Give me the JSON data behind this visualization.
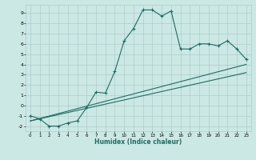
{
  "xlabel": "Humidex (Indice chaleur)",
  "ylabel": "",
  "bg_color": "#cce8e4",
  "line_color": "#1a6e62",
  "grid_color": "#aacccc",
  "xlim": [
    -0.5,
    23.5
  ],
  "ylim": [
    -2.5,
    9.8
  ],
  "xticks": [
    0,
    1,
    2,
    3,
    4,
    5,
    6,
    7,
    8,
    9,
    10,
    11,
    12,
    13,
    14,
    15,
    16,
    17,
    18,
    19,
    20,
    21,
    22,
    23
  ],
  "yticks": [
    -2,
    -1,
    0,
    1,
    2,
    3,
    4,
    5,
    6,
    7,
    8,
    9
  ],
  "curve1_x": [
    0,
    1,
    2,
    3,
    4,
    5,
    6,
    7,
    8,
    9,
    10,
    11,
    12,
    13,
    14,
    15,
    16,
    17,
    18,
    19,
    20,
    21,
    22,
    23
  ],
  "curve1_y": [
    -1.0,
    -1.3,
    -2.0,
    -2.0,
    -1.7,
    -1.5,
    -0.2,
    1.3,
    1.2,
    3.3,
    6.3,
    7.5,
    9.3,
    9.3,
    8.7,
    9.2,
    5.5,
    5.5,
    6.0,
    6.0,
    5.8,
    6.3,
    5.5,
    4.5
  ],
  "curve2_x": [
    0,
    23
  ],
  "curve2_y": [
    -1.5,
    4.0
  ],
  "curve3_x": [
    0,
    23
  ],
  "curve3_y": [
    -1.5,
    3.2
  ],
  "marker": "+"
}
